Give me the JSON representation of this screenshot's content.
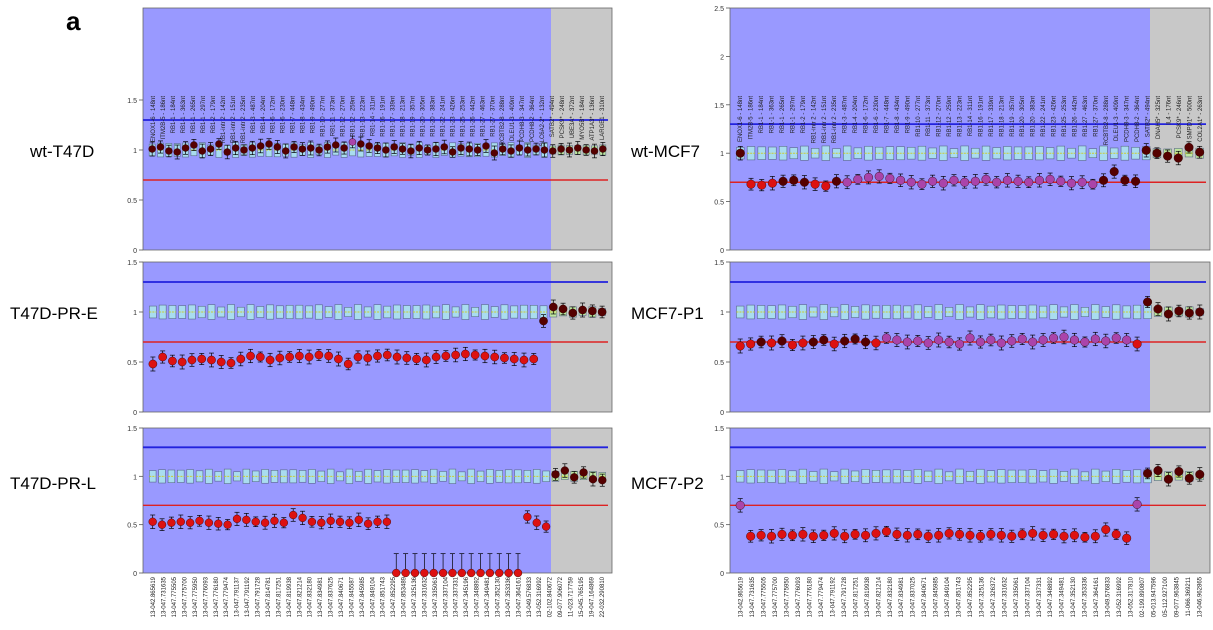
{
  "panel_letter": "a",
  "colors": {
    "plot_bg": "#9999ff",
    "control_bg": "#c8c8c8",
    "upper_line": "#2222dd",
    "lower_line": "#dd2222",
    "box_fill": "#a9dcef",
    "box_stroke": "#5a6a8a",
    "median_marker": "#cccc33",
    "point_normal": "#550000",
    "point_loss": "#dd1111",
    "point_purple": "#aa44aa",
    "error_bar": "#000000"
  },
  "probe_labels": [
    "ENOX1-6 - 148nt",
    "ITM2B-5 - 186nt",
    "RB1-1 - 184nt",
    "RB1-1 - 363nt",
    "RB1-1 - 265nt",
    "RB1-1 - 297nt",
    "RB1-2 - 179nt",
    "RB1-intr 2 - 142nt",
    "RB1-intr 2 - 151nt",
    "RB1-intr 2 - 235nt",
    "RB1-3 - 487nt",
    "RB1-4 - 204nt",
    "RB1-6 - 172nt",
    "RB1-6 - 230nt",
    "RB1-7 - 448nt",
    "RB1-8 - 434nt",
    "RB1-9 - 490nt",
    "RB1-10 - 277nt",
    "RB1-11 - 373nt",
    "RB1-12 - 270nt",
    "RB1-12 - 259nt",
    "RB1-13 - 223nt",
    "RB1-14 - 311nt",
    "RB1-16 - 191nt",
    "RB1-17 - 339nt",
    "RB1-18 - 213nt",
    "RB1-19 - 357nt",
    "RB1-20 - 305nt",
    "RB1-20 - 383nt",
    "RB1-22 - 241nt",
    "RB1-23 - 426nt",
    "RB1-25 - 253nt",
    "RB1-26 - 442nt",
    "RB1-27 - 463nt",
    "RB1-27 - 370nt",
    "RCBTB2-8 - 288nt",
    "DLEU1-3 - 409nt",
    "PCDH8-3 - 347nt",
    "PCDH8-2 - 364nt"
  ],
  "control_labels_left": [
    "SLC6A2-2* - 132nt",
    "SATB2* - 494nt",
    "PCSK9* - 248nt",
    "UBE3A* - 372nt",
    "MYO5B* - 184nt",
    "ATP1A3* - 136nt",
    "LARGE1 - 310nt"
  ],
  "control_labels_right": [
    "SATB2* - 494nt",
    "DNAH5* - 325nt",
    "IL4 - 176nt",
    "PCSK9* - 246nt",
    "SMPD1* - 500nt",
    "COL2A1* - 263nt"
  ],
  "position_labels_left": [
    "13-042.865619",
    "13-047.731635",
    "13-047.775505",
    "13-047.775700",
    "13-047.775950",
    "13-047.776093",
    "13-047.776180",
    "13-047.779474",
    "13-047.791137",
    "13-047.791192",
    "13-047.791728",
    "13-047.814781",
    "13-047.817251",
    "13-047.819938",
    "13-047.821214",
    "13-047.832180",
    "13-047.834981",
    "13-047.837625",
    "13-047.840671",
    "13-047.845587",
    "13-047.845985",
    "13-047.849104",
    "13-047.851743",
    "13-047.852295",
    "13-047.853489",
    "13-047.325136",
    "13-047.331632",
    "13-047.335061",
    "13-047.337104",
    "13-047.337331",
    "13-047.345196",
    "13-047.348892",
    "13-047.349481",
    "13-047.352130",
    "13-047.353336",
    "13-047.364161",
    "13-049.576833",
    "13-052.316992",
    "02-102.840672",
    "09-077.906072",
    "11-023.717759",
    "15-045.765195",
    "19-047.164869",
    "22-032.290810"
  ],
  "position_labels_right": [
    "13-042.865619",
    "13-047.731635",
    "13-047.775505",
    "13-047.775700",
    "13-047.775950",
    "13-047.776093",
    "13-047.776180",
    "13-047.779474",
    "13-047.791192",
    "13-047.791728",
    "13-047.817251",
    "13-047.819938",
    "13-047.821214",
    "13-047.832180",
    "13-047.834981",
    "13-047.837025",
    "13-047.840671",
    "13-047.845985",
    "13-047.849104",
    "13-047.851743",
    "13-047.852295",
    "13-047.325136",
    "13-047.326372",
    "13-047.331632",
    "13-047.335061",
    "13-047.337104",
    "13-047.337331",
    "13-047.348892",
    "13-047.349481",
    "13-047.352130",
    "13-047.353336",
    "13-047.364161",
    "13-049.576833",
    "13-052.316992",
    "13-052.317810",
    "02-199.890807",
    "05-013.947596",
    "05-112.927100",
    "09-077.963845",
    "11-066.369211",
    "13-046.962865"
  ],
  "chart_data": [
    {
      "type": "scatter",
      "sample": "wt-T47D",
      "ylim": [
        0,
        1.5
      ],
      "yticks": [
        "0",
        "0.5",
        "1",
        "1.5"
      ],
      "upper_threshold": 1.3,
      "lower_threshold": 0.7,
      "values": [
        1.01,
        1.03,
        0.99,
        0.98,
        1.02,
        1.05,
        0.99,
        1.01,
        1.06,
        0.98,
        1.02,
        1.0,
        1.02,
        1.04,
        1.06,
        1.03,
        0.99,
        1.03,
        1.01,
        1.02,
        1.0,
        1.03,
        1.05,
        1.02,
        1.08,
        1.06,
        1.04,
        1.02,
        1.0,
        1.03,
        1.01,
        0.99,
        1.02,
        1.0,
        1.01,
        1.03,
        0.98,
        1.02,
        1.01,
        1.0,
        1.04,
        0.97,
        1.01,
        0.99,
        1.02,
        1.0,
        1.01,
        1.0,
        0.99,
        1.01,
        1.0,
        1.02,
        1.0,
        0.99,
        1.01
      ],
      "point_colors": {
        "24": "purple"
      }
    },
    {
      "type": "scatter",
      "sample": "wt-MCF7",
      "ylim": [
        0,
        2.5
      ],
      "yticks": [
        "0",
        "0.5",
        "1",
        "1.5",
        "2",
        "2.5"
      ],
      "upper_threshold": 1.3,
      "lower_threshold": 0.7,
      "values": [
        1.0,
        0.68,
        0.67,
        0.69,
        0.71,
        0.72,
        0.7,
        0.68,
        0.66,
        0.71,
        0.7,
        0.73,
        0.75,
        0.76,
        0.74,
        0.72,
        0.7,
        0.68,
        0.71,
        0.69,
        0.72,
        0.7,
        0.71,
        0.73,
        0.7,
        0.72,
        0.71,
        0.7,
        0.72,
        0.73,
        0.71,
        0.69,
        0.7,
        0.68,
        0.72,
        0.81,
        0.72,
        0.71,
        1.03,
        1.0,
        0.97,
        0.95,
        1.06,
        1.01
      ],
      "point_colors": {
        "10": "purple",
        "11": "purple",
        "12": "purple",
        "13": "purple",
        "14": "purple",
        "15": "purple",
        "16": "purple",
        "17": "purple",
        "18": "purple",
        "19": "purple",
        "20": "purple",
        "21": "purple",
        "22": "purple",
        "23": "purple",
        "24": "purple",
        "25": "purple",
        "26": "purple",
        "27": "purple",
        "28": "purple",
        "29": "purple",
        "30": "purple",
        "31": "purple",
        "32": "purple",
        "33": "purple"
      }
    },
    {
      "type": "scatter",
      "sample": "T47D-PR-E",
      "ylim": [
        0,
        1.5
      ],
      "yticks": [
        "0",
        "0.5",
        "1",
        "1.5"
      ],
      "upper_threshold": 1.3,
      "lower_threshold": 0.7,
      "values": [
        0.48,
        0.55,
        0.51,
        0.5,
        0.52,
        0.53,
        0.52,
        0.5,
        0.49,
        0.53,
        0.56,
        0.55,
        0.52,
        0.54,
        0.55,
        0.56,
        0.55,
        0.57,
        0.56,
        0.53,
        0.48,
        0.55,
        0.54,
        0.56,
        0.57,
        0.55,
        0.54,
        0.53,
        0.52,
        0.55,
        0.56,
        0.57,
        0.58,
        0.57,
        0.56,
        0.55,
        0.54,
        0.53,
        0.52,
        0.53,
        0.91,
        1.05,
        1.03,
        0.99,
        1.02,
        1.01,
        1.0
      ],
      "point_colors": {}
    },
    {
      "type": "scatter",
      "sample": "MCF7-P1",
      "ylim": [
        0,
        1.5
      ],
      "yticks": [
        "0",
        "0.5",
        "1",
        "1.5"
      ],
      "upper_threshold": 1.3,
      "lower_threshold": 0.7,
      "values": [
        0.66,
        0.68,
        0.7,
        0.69,
        0.71,
        0.67,
        0.69,
        0.7,
        0.72,
        0.68,
        0.71,
        0.73,
        0.7,
        0.69,
        0.74,
        0.72,
        0.7,
        0.71,
        0.69,
        0.72,
        0.7,
        0.68,
        0.74,
        0.7,
        0.72,
        0.69,
        0.71,
        0.73,
        0.7,
        0.72,
        0.74,
        0.75,
        0.72,
        0.7,
        0.73,
        0.71,
        0.74,
        0.72,
        0.68,
        1.1,
        1.03,
        0.98,
        1.01,
        0.99,
        1.0
      ],
      "point_colors": {
        "14": "purple",
        "15": "purple",
        "16": "purple",
        "17": "purple",
        "18": "purple",
        "19": "purple",
        "20": "purple",
        "21": "purple",
        "22": "purple",
        "23": "purple",
        "24": "purple",
        "25": "purple",
        "26": "purple",
        "27": "purple",
        "28": "purple",
        "29": "purple",
        "30": "purple",
        "31": "purple",
        "32": "purple",
        "33": "purple",
        "34": "purple",
        "35": "purple",
        "36": "purple",
        "37": "purple"
      }
    },
    {
      "type": "scatter",
      "sample": "T47D-PR-L",
      "ylim": [
        0,
        1.5
      ],
      "yticks": [
        "0",
        "0.5",
        "1",
        "1.5"
      ],
      "upper_threshold": 1.3,
      "lower_threshold": 0.7,
      "values": [
        0.53,
        0.5,
        0.52,
        0.53,
        0.52,
        0.54,
        0.52,
        0.51,
        0.5,
        0.56,
        0.55,
        0.53,
        0.52,
        0.54,
        0.52,
        0.6,
        0.57,
        0.53,
        0.52,
        0.54,
        0.53,
        0.52,
        0.55,
        0.51,
        0.53,
        0.53,
        0.0,
        0.0,
        0.0,
        0.0,
        0.0,
        0.0,
        0.0,
        0.0,
        0.0,
        0.0,
        0.0,
        0.0,
        0.0,
        0.0,
        0.58,
        0.52,
        0.48,
        1.02,
        1.06,
        0.99,
        1.04,
        0.97,
        0.96
      ],
      "point_colors": {}
    },
    {
      "type": "scatter",
      "sample": "MCF7-P2",
      "ylim": [
        0,
        1.5
      ],
      "yticks": [
        "0",
        "0.5",
        "1",
        "1.5"
      ],
      "upper_threshold": 1.3,
      "lower_threshold": 0.7,
      "values": [
        0.7,
        0.38,
        0.39,
        0.38,
        0.4,
        0.39,
        0.4,
        0.38,
        0.39,
        0.41,
        0.38,
        0.4,
        0.39,
        0.41,
        0.43,
        0.4,
        0.39,
        0.4,
        0.38,
        0.39,
        0.41,
        0.4,
        0.39,
        0.38,
        0.4,
        0.39,
        0.38,
        0.4,
        0.41,
        0.39,
        0.4,
        0.38,
        0.39,
        0.37,
        0.38,
        0.45,
        0.4,
        0.36,
        0.71,
        1.03,
        1.06,
        0.97,
        1.05,
        0.98,
        1.02
      ],
      "point_colors": {
        "0": "purple",
        "38": "purple"
      }
    }
  ]
}
